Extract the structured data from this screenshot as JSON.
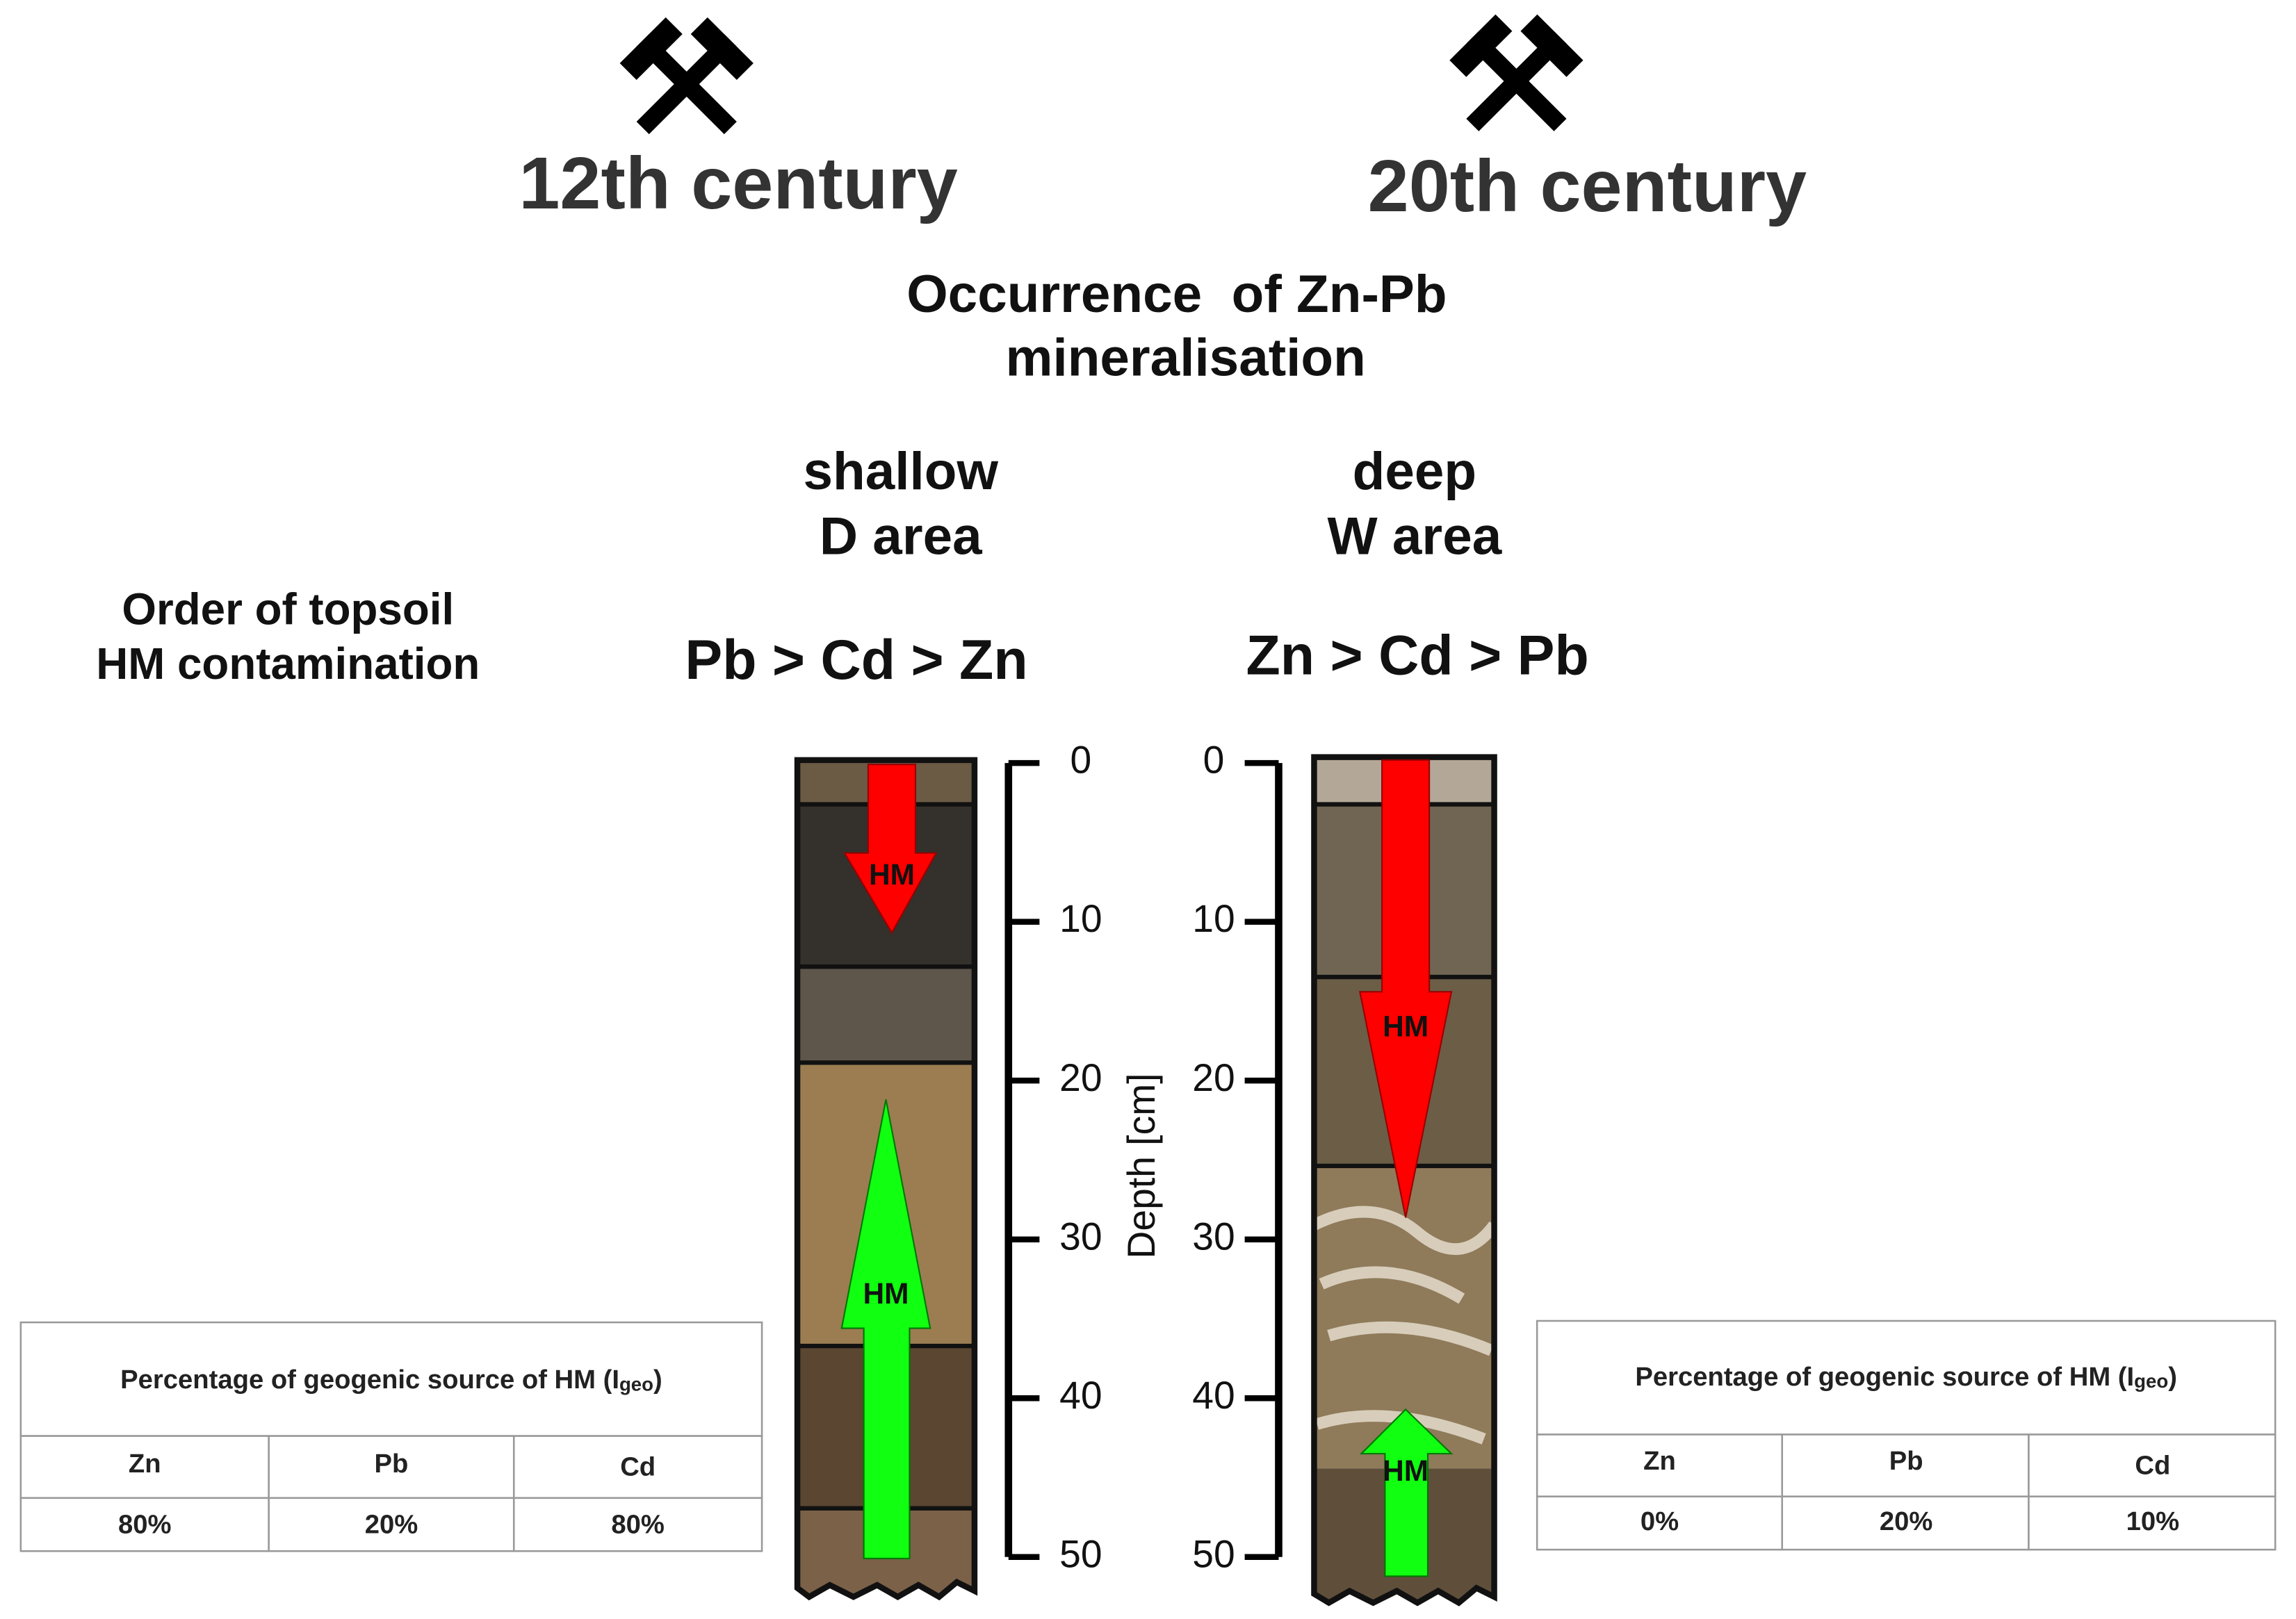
{
  "header": {
    "left": "12th century",
    "right": "20th century"
  },
  "title": [
    "Occurrence  of Zn-Pb",
    "mineralisation"
  ],
  "row_label": [
    "Order of topsoil",
    "HM contamination"
  ],
  "profiles": [
    {
      "area": [
        "shallow",
        "D area"
      ],
      "order": "Pb > Cd > Zn",
      "arrows": [
        "HM",
        "HM"
      ],
      "table": {
        "title": [
          "Percentage of geogenic source of HM (I",
          "geo",
          ")"
        ],
        "columns": [
          "Zn",
          "Pb",
          "Cd"
        ],
        "values": [
          "80%",
          "20%",
          "80%"
        ]
      }
    },
    {
      "area": [
        "deep",
        "W area"
      ],
      "order": "Zn > Cd > Pb",
      "arrows": [
        "HM",
        "HM"
      ],
      "table": {
        "title": [
          "Percentage of geogenic source of HM (I",
          "geo",
          ")"
        ],
        "columns": [
          "Zn",
          "Pb",
          "Cd"
        ],
        "values": [
          "0%",
          "20%",
          "10%"
        ]
      }
    }
  ],
  "depth_axis": {
    "label": "Depth [cm]",
    "ticks": [
      0,
      10,
      20,
      30,
      40,
      50
    ]
  }
}
